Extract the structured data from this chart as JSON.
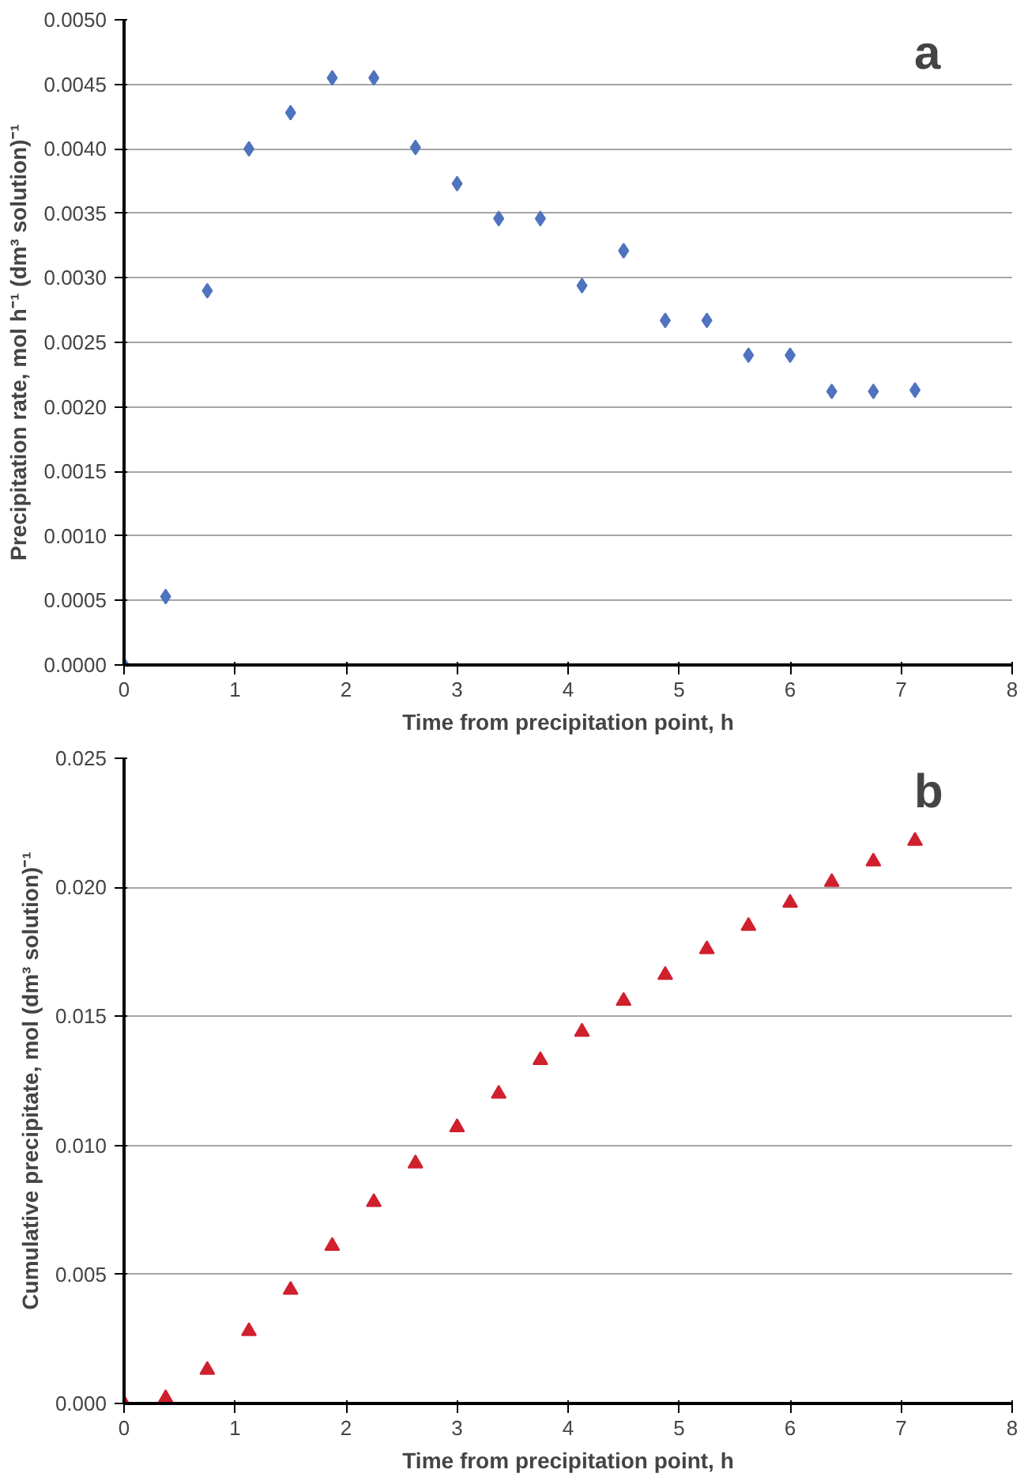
{
  "chart_data": [
    {
      "type": "scatter",
      "annotations": [
        "a"
      ],
      "xlabel": "Time from precipitation point, h",
      "ylabel": "Precipitation rate, mol h⁻¹ (dm³ solution)⁻¹",
      "x": [
        0,
        0.375,
        0.75,
        1.125,
        1.5,
        1.875,
        2.25,
        2.625,
        3,
        3.375,
        3.75,
        4.125,
        4.5,
        4.875,
        5.25,
        5.625,
        6,
        6.375,
        6.75,
        7.125
      ],
      "series": [
        {
          "color": "#4f73be",
          "values": [
            0,
            0.00053,
            0.0029,
            0.004,
            0.00428,
            0.00455,
            0.00455,
            0.00401,
            0.00373,
            0.00346,
            0.00346,
            0.00294,
            0.00321,
            0.00267,
            0.00267,
            0.0024,
            0.0024,
            0.00212,
            0.00212,
            0.00213
          ]
        }
      ],
      "xlim": [
        0,
        8
      ],
      "xticks": [
        0,
        1,
        2,
        3,
        4,
        5,
        6,
        7,
        8
      ],
      "ylim": [
        0,
        0.005
      ],
      "yticks": [
        {
          "value": 0,
          "label": "0.0000"
        },
        {
          "value": 0.0005,
          "label": "0.0005"
        },
        {
          "value": 0.001,
          "label": "0.0010"
        },
        {
          "value": 0.0015,
          "label": "0.0015"
        },
        {
          "value": 0.002,
          "label": "0.0020"
        },
        {
          "value": 0.0025,
          "label": "0.0025"
        },
        {
          "value": 0.003,
          "label": "0.0030"
        },
        {
          "value": 0.0035,
          "label": "0.0035"
        },
        {
          "value": 0.004,
          "label": "0.0040"
        },
        {
          "value": 0.0045,
          "label": "0.0045"
        },
        {
          "value": 0.005,
          "label": "0.0050"
        }
      ],
      "grid": "y",
      "marker": "diamond"
    },
    {
      "type": "scatter",
      "annotations": [
        "b"
      ],
      "xlabel": "Time from precipitation point, h",
      "ylabel": "Cumulative precipitate, mol (dm³ solution)⁻¹",
      "x": [
        0,
        0.375,
        0.75,
        1.125,
        1.5,
        1.875,
        2.25,
        2.625,
        3,
        3.375,
        3.75,
        4.125,
        4.5,
        4.875,
        5.25,
        5.625,
        6,
        6.375,
        6.75,
        7.125
      ],
      "series": [
        {
          "color": "#d0202e",
          "values": [
            0,
            0.0002,
            0.0013,
            0.0028,
            0.0044,
            0.0061,
            0.0078,
            0.0093,
            0.0107,
            0.012,
            0.0133,
            0.0144,
            0.0156,
            0.0166,
            0.0176,
            0.0185,
            0.0194,
            0.0202,
            0.021,
            0.0218
          ]
        }
      ],
      "xlim": [
        0,
        8
      ],
      "xticks": [
        0,
        1,
        2,
        3,
        4,
        5,
        6,
        7,
        8
      ],
      "ylim": [
        0,
        0.025
      ],
      "yticks": [
        {
          "value": 0,
          "label": "0.000"
        },
        {
          "value": 0.005,
          "label": "0.005"
        },
        {
          "value": 0.01,
          "label": "0.010"
        },
        {
          "value": 0.015,
          "label": "0.015"
        },
        {
          "value": 0.02,
          "label": "0.020"
        },
        {
          "value": 0.025,
          "label": "0.025"
        }
      ],
      "grid": "y",
      "marker": "triangle"
    }
  ]
}
